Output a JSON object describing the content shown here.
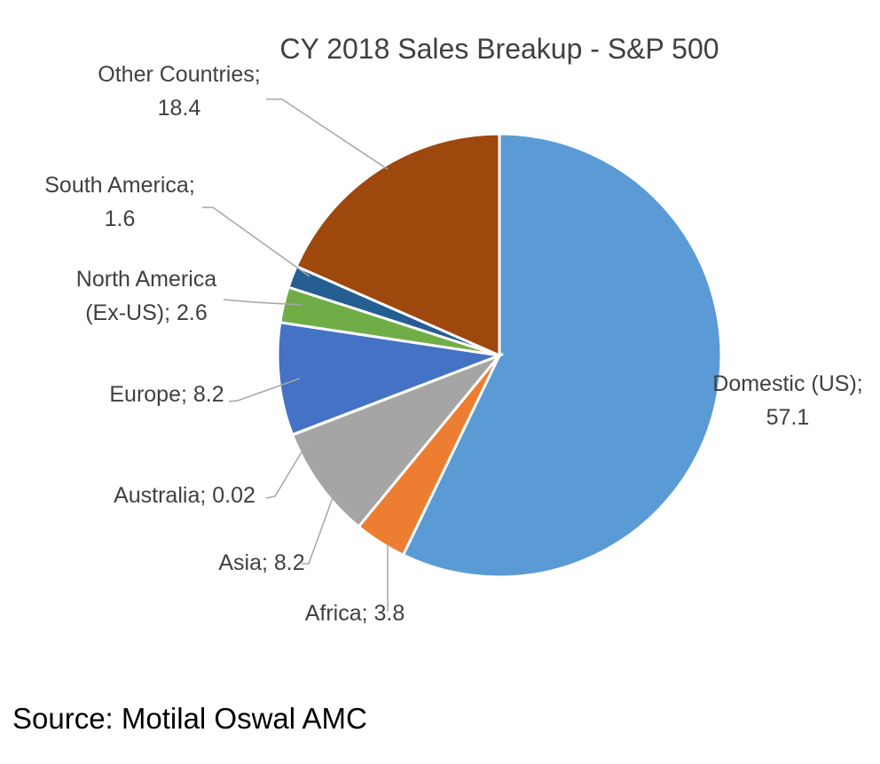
{
  "chart_data": {
    "type": "pie",
    "title": "CY 2018 Sales Breakup - S&P 500",
    "slices": [
      {
        "name": "Domestic (US)",
        "value": 57.1,
        "color": "#5b9bd5",
        "label_lines": [
          "Domestic (US);",
          "57.1"
        ]
      },
      {
        "name": "Africa",
        "value": 3.8,
        "color": "#ed7d31",
        "label_lines": [
          "Africa; 3.8"
        ]
      },
      {
        "name": "Asia",
        "value": 8.2,
        "color": "#a5a5a5",
        "label_lines": [
          "Asia; 8.2"
        ]
      },
      {
        "name": "Australia",
        "value": 0.02,
        "color": "#ffc000",
        "label_lines": [
          "Australia; 0.02"
        ]
      },
      {
        "name": "Europe",
        "value": 8.2,
        "color": "#4472c4",
        "label_lines": [
          "Europe; 8.2"
        ]
      },
      {
        "name": "North America (Ex-US)",
        "value": 2.6,
        "color": "#70ad47",
        "label_lines": [
          "North America",
          "(Ex-US); 2.6"
        ]
      },
      {
        "name": "South America",
        "value": 1.6,
        "color": "#255e91",
        "label_lines": [
          "South America;",
          "1.6"
        ]
      },
      {
        "name": "Other Countries",
        "value": 18.4,
        "color": "#9e480e",
        "label_lines": [
          "Other Countries;",
          "18.4"
        ]
      }
    ],
    "legend": "none",
    "data_labels": "outside with leader lines"
  },
  "footer": {
    "source": "Source: Motilal Oswal AMC"
  }
}
